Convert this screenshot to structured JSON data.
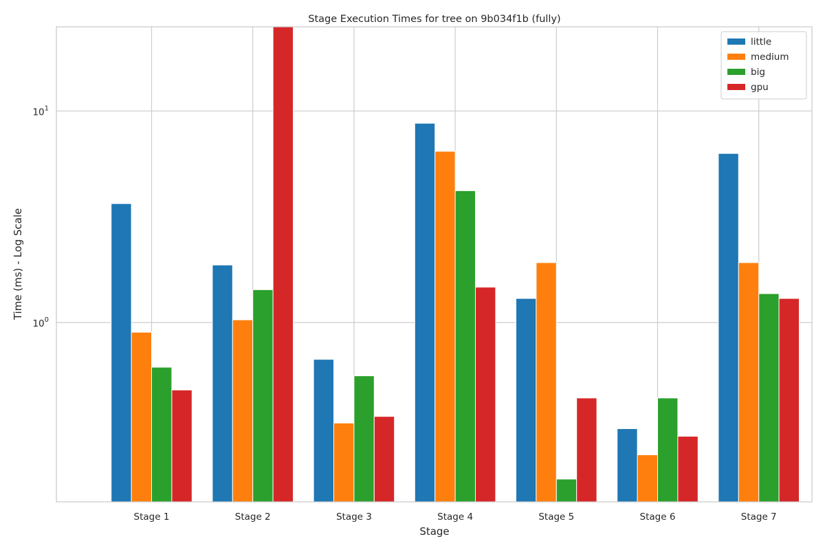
{
  "chart_data": {
    "type": "bar",
    "title": "Stage Execution Times for tree on 9b034f1b (fully)",
    "xlabel": "Stage",
    "ylabel": "Time (ms) - Log Scale",
    "yscale": "log",
    "ylim": [
      0.142,
      25
    ],
    "yticks": [
      {
        "value": 1,
        "base": "10",
        "exp": "0"
      },
      {
        "value": 10,
        "base": "10",
        "exp": "1"
      }
    ],
    "grid": true,
    "legend_position": "top-right",
    "categories": [
      "Stage 1",
      "Stage 2",
      "Stage 3",
      "Stage 4",
      "Stage 5",
      "Stage 6",
      "Stage 7"
    ],
    "series": [
      {
        "name": "little",
        "color": "#1f77b4",
        "values": [
          3.65,
          1.87,
          0.67,
          8.75,
          1.3,
          0.315,
          6.3
        ]
      },
      {
        "name": "medium",
        "color": "#ff7f0e",
        "values": [
          0.9,
          1.03,
          0.335,
          6.45,
          1.92,
          0.237,
          1.92
        ]
      },
      {
        "name": "big",
        "color": "#2ca02c",
        "values": [
          0.615,
          1.43,
          0.56,
          4.2,
          0.182,
          0.44,
          1.37
        ]
      },
      {
        "name": "gpu",
        "color": "#d62728",
        "values": [
          0.48,
          25.0,
          0.36,
          1.47,
          0.44,
          0.29,
          1.3
        ]
      }
    ]
  }
}
